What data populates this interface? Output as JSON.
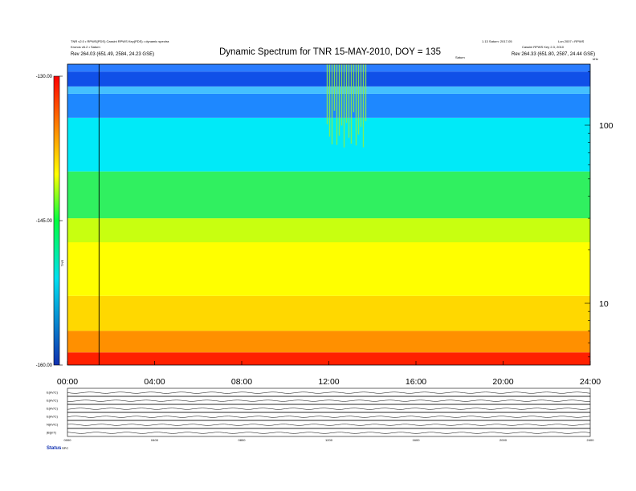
{
  "header": {
    "top_left_line1": "TNR v2.0 • RPWS(PDS) Cassini RPWS Key(PDS) • dynamic spectra",
    "top_left_line2": "Kronos v6.2 • Saturn",
    "rev_left": "Rev 264.03 (651.49, 2584, 24.23 GSE)",
    "top_right_line1": "1.13 Saturn: 2017-05",
    "top_right_line2": "Lon 2007 • RPWS",
    "top_right_line3": "Cassini RPWS Key 2.3, 2010",
    "rev_right": "Rev 264.33 (651.80, 2587, 24.44 GSE)",
    "right_corner_label": "kHz",
    "mid_label": "Saturn"
  },
  "chart_data": {
    "type": "heatmap",
    "title": "Dynamic Spectrum for TNR 15-MAY-2010, DOY = 135",
    "x_ticks": [
      "00:00",
      "04:00",
      "08:00",
      "12:00",
      "16:00",
      "20:00",
      "24:00"
    ],
    "x_range_hours": [
      0,
      24
    ],
    "y_scale": "log",
    "y_range_khz": [
      4.5,
      220
    ],
    "y_ticks": [
      10,
      100
    ],
    "colorbar": {
      "label": "TNR",
      "ticks": [
        "-130.00",
        "-145.00",
        "-160.00"
      ],
      "range": [
        -160,
        -130
      ],
      "colors": [
        "#1030b0",
        "#00e0f0",
        "#00ff40",
        "#ffff00",
        "#ff8000",
        "#ff0000"
      ]
    },
    "event_line_hour": 1.45,
    "bands": [
      {
        "freq_from_khz": 4.5,
        "freq_to_khz": 5.3,
        "color": "#ff2000"
      },
      {
        "freq_from_khz": 5.3,
        "freq_to_khz": 7,
        "color": "#ff9000"
      },
      {
        "freq_from_khz": 7,
        "freq_to_khz": 11,
        "color": "#ffd800"
      },
      {
        "freq_from_khz": 11,
        "freq_to_khz": 22,
        "color": "#ffff00"
      },
      {
        "freq_from_khz": 22,
        "freq_to_khz": 30,
        "color": "#c8ff10"
      },
      {
        "freq_from_khz": 30,
        "freq_to_khz": 55,
        "color": "#30f060"
      },
      {
        "freq_from_khz": 55,
        "freq_to_khz": 110,
        "color": "#00eaf8"
      },
      {
        "freq_from_khz": 110,
        "freq_to_khz": 150,
        "color": "#1e88ff"
      },
      {
        "freq_from_khz": 150,
        "freq_to_khz": 165,
        "color": "#44c0ff"
      },
      {
        "freq_from_khz": 165,
        "freq_to_khz": 200,
        "color": "#1050e8"
      },
      {
        "freq_from_khz": 200,
        "freq_to_khz": 220,
        "color": "#2a7cff"
      }
    ],
    "bursts": [
      {
        "hour_from": 11.9,
        "hour_to": 13.7,
        "freq_from_khz": 75,
        "freq_to_khz": 220,
        "color": "#90f040"
      }
    ]
  },
  "panels": {
    "labels": [
      "E(kV/C)",
      "E(kV/C)",
      "E(kV/C)",
      "E(kV/C)",
      "N(kV/C)",
      "|B|(nT)"
    ],
    "x_ticks": [
      "0000",
      "0400",
      "0800",
      "1200",
      "1600",
      "2000",
      "2400"
    ],
    "footer_label": "Status",
    "footer_code": "SPC"
  }
}
